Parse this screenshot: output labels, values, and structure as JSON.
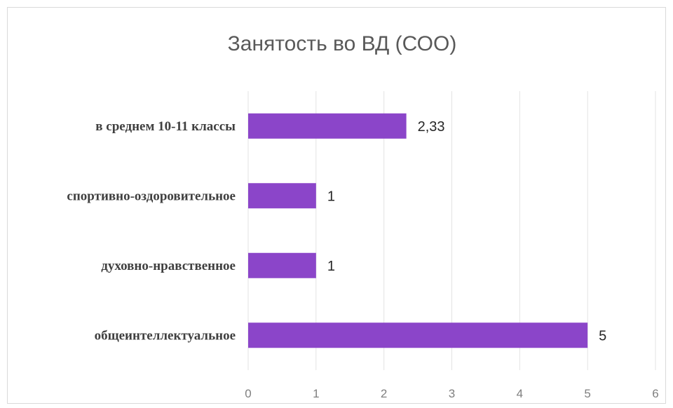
{
  "chart_data": {
    "type": "bar",
    "orientation": "horizontal",
    "title": "Занятость во ВД (СОО)",
    "categories": [
      "в среднем 10-11 классы",
      "спортивно-оздоровительное",
      "духовно-нравственное",
      "общеинтеллектуальное"
    ],
    "values": [
      2.33,
      1,
      1,
      5
    ],
    "value_labels": [
      "2,33",
      "1",
      "1",
      "5"
    ],
    "xlim": [
      0,
      6
    ],
    "xticks": [
      "0",
      "1",
      "2",
      "3",
      "4",
      "5",
      "6"
    ],
    "grid": true,
    "legend": "none",
    "bar_color": "#8b45c9"
  }
}
